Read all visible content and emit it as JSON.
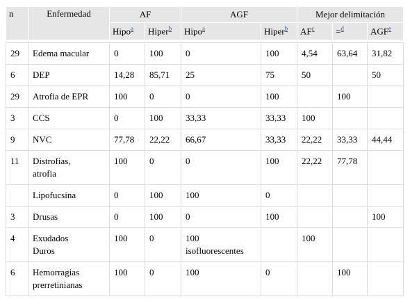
{
  "table": {
    "header_top": [
      "n",
      "Enfermedad",
      "AF",
      "AGF",
      "Mejor delimitación"
    ],
    "header_sub": [
      {
        "text": "Hipo",
        "note": "a"
      },
      {
        "text": "Hiper",
        "note": "b"
      },
      {
        "text": "Hipo",
        "note": "a"
      },
      {
        "text": "Hiper",
        "note": "b"
      },
      {
        "text": "AF",
        "note": "c"
      },
      {
        "text": "=",
        "note": "d"
      },
      {
        "text": "AGF",
        "note": "e"
      }
    ],
    "rows": [
      [
        "29",
        "Edema macular",
        "0",
        "100",
        "0",
        "100",
        "4,54",
        "63,64",
        "31,82"
      ],
      [
        "6",
        "DEP",
        "14,28",
        "85,71",
        "25",
        "75",
        "50",
        null,
        "50"
      ],
      [
        "29",
        "Atrofia de EPR",
        "100",
        "0",
        "0",
        "100",
        null,
        "100",
        null
      ],
      [
        "3",
        "CCS",
        "0",
        "100",
        "33,33",
        "33,33",
        "100",
        null,
        null
      ],
      [
        "9",
        "NVC",
        "77,78",
        "22,22",
        "66,67",
        "33,33",
        "22,22",
        "33,33",
        "44,44"
      ],
      [
        "11",
        "Distrofias,\natrofia",
        "100",
        "0",
        "0",
        "100",
        "22,22",
        "77,78",
        null
      ],
      [
        null,
        "Lipofucsina",
        "0",
        "100",
        "100",
        "0",
        null,
        null,
        null
      ],
      [
        "3",
        "Drusas",
        "0",
        "100",
        "0",
        "100",
        null,
        null,
        "100"
      ],
      [
        "4",
        "Exudados\nDuros",
        "100",
        "0",
        "100\nisofluorescentes",
        null,
        "100",
        null,
        null
      ],
      [
        "6",
        "Hemorragias\nprerretinianas",
        "100",
        "0",
        "100",
        "0",
        null,
        "100",
        null
      ]
    ]
  }
}
